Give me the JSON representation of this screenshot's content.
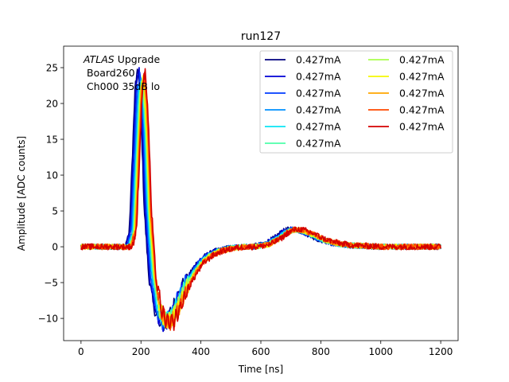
{
  "chart_data": {
    "type": "line",
    "title": "run127",
    "xlabel": "Time [ns]",
    "ylabel": "Amplitude [ADC counts]",
    "xlim": [
      -58,
      1258
    ],
    "ylim": [
      -13.1,
      28.0
    ],
    "xticks": [
      0,
      200,
      400,
      600,
      800,
      1000,
      1200
    ],
    "yticks": [
      -10,
      -5,
      0,
      5,
      10,
      15,
      20,
      25
    ],
    "grid": false,
    "legend_position": "top-right",
    "legend_columns": 2,
    "annotation": {
      "experiment": "ATLAS",
      "label": "Upgrade",
      "board": "Board260",
      "channel": "Ch000 35dB lo"
    },
    "pulse_shape": {
      "t": [
        0,
        160,
        175,
        185,
        195,
        205,
        215,
        225,
        240,
        260,
        280,
        300,
        320,
        340,
        360,
        380,
        400,
        430,
        460,
        500,
        540,
        580,
        620,
        660,
        680,
        700,
        720,
        740,
        760,
        780,
        800,
        830,
        860,
        900,
        950,
        1000,
        1050,
        1100,
        1150,
        1200
      ],
      "y": [
        0,
        0,
        2,
        12,
        22,
        24,
        17,
        5,
        -4,
        -9,
        -10.5,
        -10.2,
        -8.5,
        -6.5,
        -4.8,
        -3.4,
        -2.2,
        -1.2,
        -0.6,
        -0.2,
        0,
        0,
        0.3,
        1.2,
        1.9,
        2.3,
        2.4,
        2.2,
        1.9,
        1.5,
        1.1,
        0.7,
        0.4,
        0.2,
        0.1,
        0,
        0,
        0,
        0,
        0
      ]
    },
    "series": [
      {
        "name": "0.427mA",
        "color": "#00007f",
        "time_shift_ns": -14,
        "scale": 1.03,
        "noise": 0.38
      },
      {
        "name": "0.427mA",
        "color": "#0000d4",
        "time_shift_ns": -11,
        "scale": 1.02,
        "noise": 0.38
      },
      {
        "name": "0.427mA",
        "color": "#003cff",
        "time_shift_ns": -8,
        "scale": 1.0,
        "noise": 0.36
      },
      {
        "name": "0.427mA",
        "color": "#0090ff",
        "time_shift_ns": -5,
        "scale": 0.99,
        "noise": 0.36
      },
      {
        "name": "0.427mA",
        "color": "#0ae4f4",
        "time_shift_ns": -2,
        "scale": 0.98,
        "noise": 0.36
      },
      {
        "name": "0.427mA",
        "color": "#4dffaa",
        "time_shift_ns": 0,
        "scale": 0.97,
        "noise": 0.36
      },
      {
        "name": "0.427mA",
        "color": "#aaff4d",
        "time_shift_ns": 2,
        "scale": 0.98,
        "noise": 0.36
      },
      {
        "name": "0.427mA",
        "color": "#f4f802",
        "time_shift_ns": 4,
        "scale": 0.99,
        "noise": 0.36
      },
      {
        "name": "0.427mA",
        "color": "#ffa600",
        "time_shift_ns": 6,
        "scale": 1.0,
        "noise": 0.38
      },
      {
        "name": "0.427mA",
        "color": "#ff4800",
        "time_shift_ns": 8,
        "scale": 1.01,
        "noise": 0.4
      },
      {
        "name": "0.427mA",
        "color": "#d40000",
        "time_shift_ns": 10,
        "scale": 1.02,
        "noise": 0.42
      }
    ]
  }
}
